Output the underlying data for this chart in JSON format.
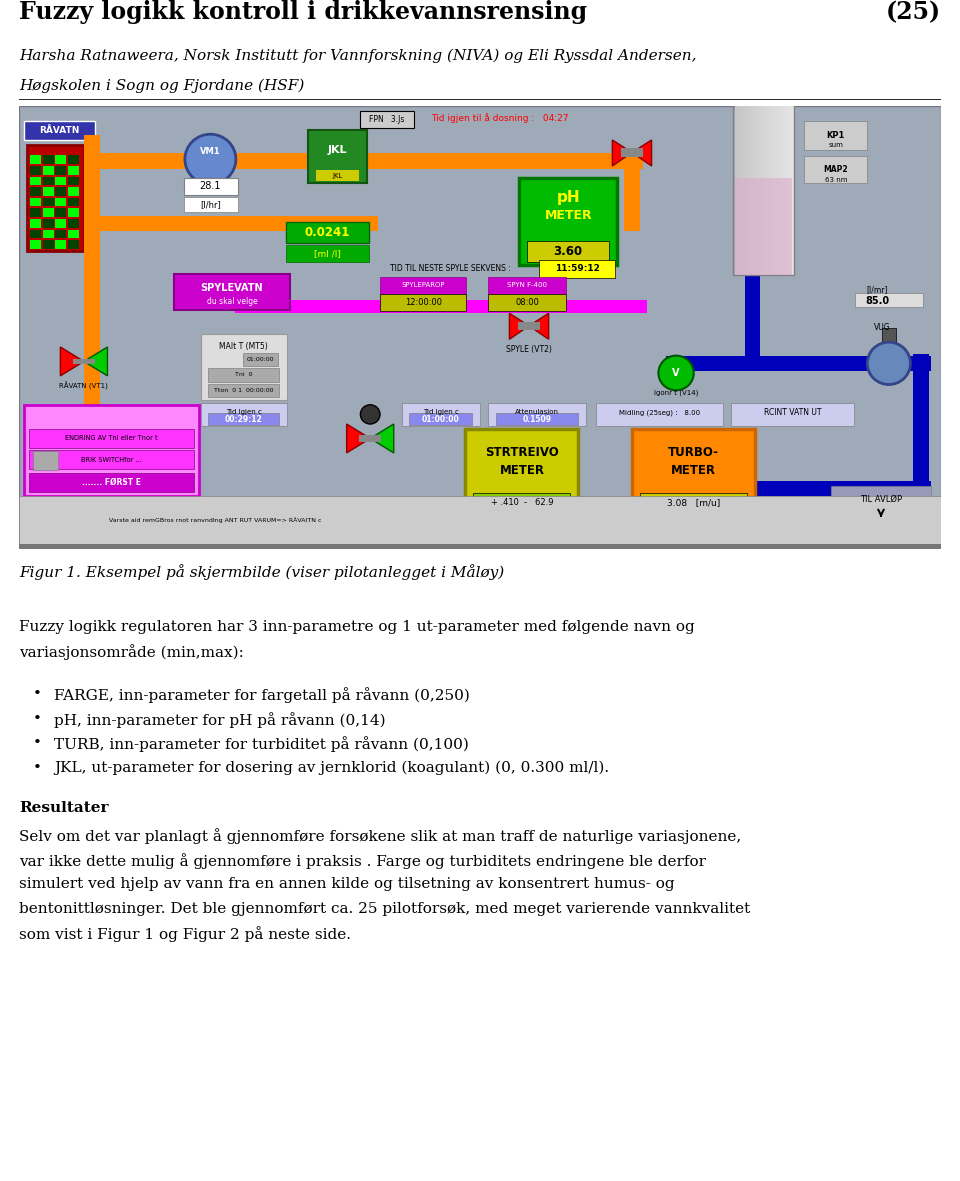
{
  "title": "Fuzzy logikk kontroll i drikkevannsrensing",
  "title_number": "(25)",
  "author_line1": "Harsha Ratnaweera, Norsk Institutt for Vannforskning (NIVA) og Eli Ryssdal Andersen,",
  "author_line2": "Høgskolen i Sogn og Fjordane (HSF)",
  "figure_caption": "Figur 1. Eksempel på skjermbilde (viser pilotanlegget i Måløy)",
  "body_para1_line1": "Fuzzy logikk regulatoren har 3 inn-parametre og 1 ut-parameter med følgende navn og",
  "body_para1_line2": "variasjonsområde (min,max):",
  "bullets": [
    "FARGE, inn-parameter for fargetall på råvann (0,250)",
    "pH, inn-parameter for pH på råvann (0,14)",
    "TURB, inn-parameter for turbiditet på råvann (0,100)",
    "JKL, ut-parameter for dosering av jernklorid (koagulant) (0, 0.300 ml/l)."
  ],
  "results_heading": "Resultater",
  "results_lines": [
    "Selv om det var planlagt å gjennomføre forsøkene slik at man traff de naturlige variasjonene,",
    "var ikke dette mulig å gjennomføre i praksis . Farge og turbiditets endringene ble derfor",
    "simulert ved hjelp av vann fra en annen kilde og tilsetning av konsentrert humus- og",
    "bentonittløsninger. Det ble gjennomført ca. 25 pilotforsøk, med meget varierende vannkvalitet",
    "som vist i Figur 1 og Figur 2 på neste side."
  ],
  "bg_color": "#9EAAB8",
  "page_bg": "#ffffff",
  "orange": "#FF8800",
  "blue": "#0000BB",
  "magenta": "#FF00FF",
  "green_bright": "#00CC00",
  "green_dark": "#007700",
  "red_valve": "#CC0000"
}
